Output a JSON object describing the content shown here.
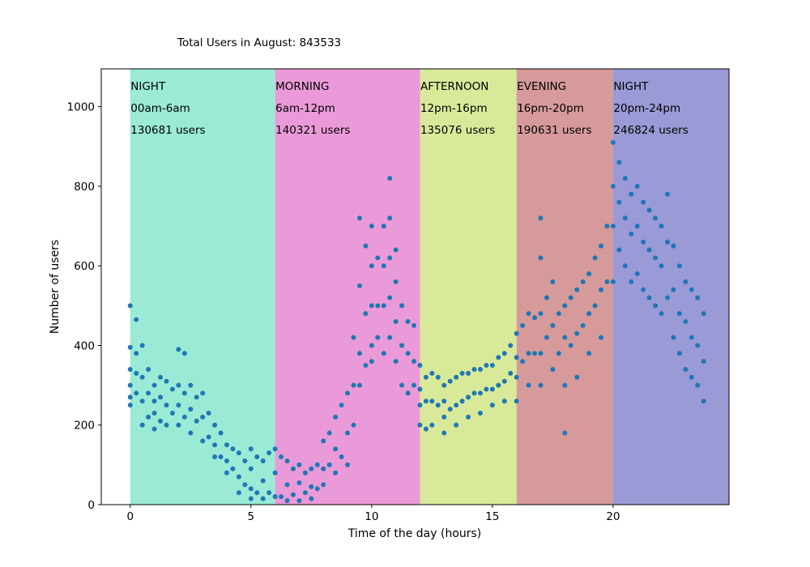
{
  "chart_data": {
    "type": "scatter",
    "title": "Total Users in August: 843533",
    "xlabel": "Time of the day (hours)",
    "ylabel": "Number of users",
    "xlim": [
      -1.2,
      24.8
    ],
    "ylim": [
      0,
      1095
    ],
    "x_ticks": [
      0,
      5,
      10,
      15,
      20
    ],
    "y_ticks": [
      0,
      200,
      400,
      600,
      800,
      1000
    ],
    "grid": false,
    "point_color": "#1f77b4",
    "bands": [
      {
        "start": 0,
        "end": 6,
        "color": "#9aead6",
        "name": "NIGHT",
        "range": "00am-6am",
        "users": "130681 users"
      },
      {
        "start": 6,
        "end": 12,
        "color": "#ea9ad8",
        "name": "MORNING",
        "range": "6am-12pm",
        "users": "140321 users"
      },
      {
        "start": 12,
        "end": 16,
        "color": "#d8ea9a",
        "name": "AFTERNOON",
        "range": "12pm-16pm",
        "users": "135076 users"
      },
      {
        "start": 16,
        "end": 20,
        "color": "#d69a9a",
        "name": "EVENING",
        "range": "16pm-20pm",
        "users": "190631 users"
      },
      {
        "start": 20,
        "end": 24.8,
        "color": "#9a9ad6",
        "name": "NIGHT",
        "range": "20pm-24pm",
        "users": "246824 users"
      }
    ],
    "series": [
      {
        "x": [
          0,
          0,
          0,
          0,
          0,
          0,
          0.25,
          0.25,
          0.25,
          0.25,
          0.5,
          0.5,
          0.5,
          0.5,
          0.75,
          0.75,
          0.75,
          1,
          1,
          1,
          1,
          1.25,
          1.25,
          1.25,
          1.5,
          1.5,
          1.5,
          1.75,
          1.75,
          2,
          2,
          2,
          2,
          2.25,
          2.25,
          2.25,
          2.5,
          2.5,
          2.5,
          2.75,
          2.75,
          3,
          3,
          3,
          3.25,
          3.25,
          3.5,
          3.5,
          3.5,
          3.75,
          3.75,
          4,
          4,
          4,
          4.25,
          4.25,
          4.5,
          4.5,
          4.5,
          4.75,
          4.75,
          5,
          5,
          5,
          5,
          5.25,
          5.25,
          5.5,
          5.5,
          5.5,
          5.75,
          5.75,
          6,
          6,
          6,
          6.25,
          6.25,
          6.5,
          6.5,
          6.5,
          6.75,
          6.75,
          7,
          7,
          7,
          7.25,
          7.25,
          7.5,
          7.5,
          7.5,
          7.75,
          7.75,
          8,
          8,
          8,
          8.25,
          8.25,
          8.5,
          8.5,
          8.5,
          8.75,
          8.75,
          9,
          9,
          9,
          9.25,
          9.25,
          9.25,
          9.5,
          9.5,
          9.5,
          9.5,
          9.75,
          9.75,
          9.75,
          10,
          10,
          10,
          10,
          10,
          10.25,
          10.25,
          10.25,
          10.5,
          10.5,
          10.5,
          10.5,
          10.75,
          10.75,
          10.75,
          10.75,
          10.75,
          11,
          11,
          11,
          11,
          11.25,
          11.25,
          11.25,
          11.5,
          11.5,
          11.5,
          11.75,
          11.75,
          11.75,
          12,
          12,
          12,
          12,
          12.25,
          12.25,
          12.25,
          12.5,
          12.5,
          12.5,
          12.75,
          12.75,
          13,
          13,
          13,
          13,
          13.25,
          13.25,
          13.5,
          13.5,
          13.5,
          13.75,
          13.75,
          14,
          14,
          14,
          14.25,
          14.25,
          14.5,
          14.5,
          14.5,
          14.75,
          14.75,
          15,
          15,
          15,
          15.25,
          15.25,
          15.5,
          15.5,
          15.5,
          15.75,
          15.75,
          16,
          16,
          16,
          16,
          16.25,
          16.25,
          16.5,
          16.5,
          16.5,
          16.75,
          16.75,
          17,
          17,
          17,
          17,
          17,
          17.25,
          17.25,
          17.5,
          17.5,
          17.5,
          17.75,
          17.75,
          18,
          18,
          18,
          18,
          18.25,
          18.25,
          18.5,
          18.5,
          18.5,
          18.75,
          18.75,
          19,
          19,
          19,
          19.25,
          19.25,
          19.5,
          19.5,
          19.5,
          19.75,
          19.75,
          20,
          20,
          20,
          20,
          20.25,
          20.25,
          20.25,
          20.5,
          20.5,
          20.5,
          20.75,
          20.75,
          20.75,
          21,
          21,
          21,
          21.25,
          21.25,
          21.25,
          21.5,
          21.5,
          21.5,
          21.75,
          21.75,
          21.75,
          22,
          22,
          22,
          22.25,
          22.25,
          22.25,
          22.5,
          22.5,
          22.5,
          22.75,
          22.75,
          22.75,
          23,
          23,
          23,
          23.25,
          23.25,
          23.25,
          23.5,
          23.5,
          23.5,
          23.75,
          23.75,
          23.75
        ],
        "y": [
          500,
          395,
          340,
          300,
          270,
          250,
          465,
          380,
          330,
          280,
          400,
          320,
          260,
          200,
          340,
          280,
          220,
          300,
          260,
          230,
          190,
          320,
          270,
          210,
          310,
          250,
          200,
          290,
          230,
          390,
          300,
          250,
          200,
          380,
          280,
          220,
          300,
          240,
          180,
          270,
          210,
          280,
          220,
          160,
          230,
          170,
          200,
          150,
          120,
          180,
          120,
          150,
          110,
          80,
          140,
          90,
          130,
          70,
          30,
          110,
          50,
          140,
          90,
          40,
          15,
          120,
          30,
          110,
          60,
          15,
          130,
          30,
          140,
          80,
          20,
          120,
          20,
          110,
          50,
          10,
          90,
          25,
          100,
          55,
          10,
          80,
          30,
          90,
          45,
          15,
          100,
          40,
          160,
          90,
          50,
          180,
          100,
          220,
          140,
          80,
          250,
          120,
          280,
          180,
          100,
          420,
          300,
          200,
          720,
          550,
          380,
          300,
          650,
          480,
          350,
          700,
          600,
          500,
          400,
          360,
          620,
          500,
          420,
          700,
          600,
          500,
          380,
          820,
          720,
          620,
          520,
          420,
          640,
          560,
          460,
          360,
          500,
          400,
          300,
          460,
          380,
          280,
          450,
          360,
          300,
          350,
          290,
          250,
          200,
          320,
          260,
          190,
          330,
          260,
          200,
          320,
          250,
          300,
          260,
          220,
          180,
          310,
          240,
          320,
          250,
          200,
          330,
          260,
          330,
          270,
          220,
          340,
          280,
          340,
          280,
          230,
          350,
          290,
          350,
          290,
          250,
          370,
          300,
          380,
          310,
          260,
          400,
          330,
          430,
          370,
          320,
          260,
          450,
          360,
          480,
          380,
          300,
          470,
          380,
          720,
          620,
          480,
          380,
          300,
          520,
          420,
          560,
          450,
          340,
          480,
          380,
          500,
          420,
          300,
          180,
          520,
          400,
          540,
          430,
          320,
          560,
          450,
          580,
          480,
          380,
          620,
          500,
          650,
          540,
          420,
          700,
          560,
          910,
          800,
          700,
          560,
          860,
          760,
          640,
          820,
          720,
          600,
          780,
          680,
          560,
          800,
          700,
          580,
          760,
          660,
          540,
          740,
          640,
          520,
          720,
          620,
          500,
          700,
          600,
          480,
          780,
          660,
          520,
          650,
          540,
          420,
          600,
          480,
          380,
          560,
          460,
          340,
          540,
          420,
          320,
          520,
          400,
          300,
          480,
          360,
          260
        ]
      }
    ]
  }
}
